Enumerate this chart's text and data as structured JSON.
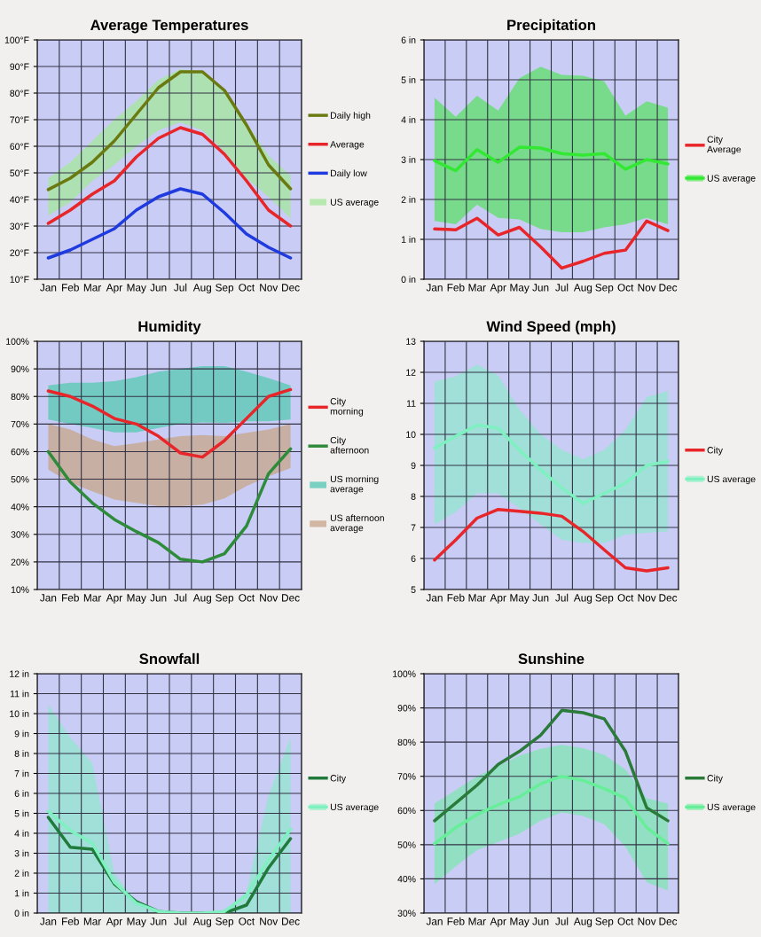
{
  "chart_data": [
    {
      "type": "line",
      "title": "Average Temperatures",
      "categories": [
        "Jan",
        "Feb",
        "Mar",
        "Apr",
        "May",
        "Jun",
        "Jul",
        "Aug",
        "Sep",
        "Oct",
        "Nov",
        "Dec"
      ],
      "ylim": [
        10,
        100
      ],
      "yticks": [
        {
          "value": 10,
          "label": "10°F"
        },
        {
          "value": 20,
          "label": "20°F"
        },
        {
          "value": 30,
          "label": "30°F"
        },
        {
          "value": 40,
          "label": "40°F"
        },
        {
          "value": 50,
          "label": "50°F"
        },
        {
          "value": 60,
          "label": "60°F"
        },
        {
          "value": 70,
          "label": "70°F"
        },
        {
          "value": 80,
          "label": "80°F"
        },
        {
          "value": 90,
          "label": "90°F"
        },
        {
          "value": 100,
          "label": "100°F"
        }
      ],
      "grid": true,
      "legend": "right",
      "series": [
        {
          "name": "Daily high",
          "color": "#6b7a10",
          "values": [
            43.7,
            48,
            54,
            62,
            72,
            82,
            88,
            88,
            81,
            68,
            53,
            44
          ]
        },
        {
          "name": "Average",
          "color": "#e8262a",
          "values": [
            31,
            36,
            42,
            47,
            56,
            63,
            67,
            64.5,
            57,
            47,
            36,
            30
          ]
        },
        {
          "name": "Daily low",
          "color": "#1f3be0",
          "values": [
            18,
            21,
            25,
            29,
            36,
            41,
            44,
            42,
            35,
            27,
            22,
            18
          ]
        },
        {
          "name": "US average",
          "color": "#a8e6a0",
          "values": [
            null,
            null,
            null,
            null,
            null,
            null,
            null,
            null,
            null,
            null,
            null,
            null
          ],
          "lower": [
            34,
            39,
            47,
            53,
            60,
            66,
            69,
            66,
            58,
            48,
            41,
            33
          ],
          "upper": [
            48,
            54,
            62,
            70,
            77,
            85,
            89,
            88,
            81,
            69,
            56.5,
            49
          ]
        }
      ]
    },
    {
      "type": "line",
      "title": "Precipitation",
      "categories": [
        "Jan",
        "Feb",
        "Mar",
        "Apr",
        "May",
        "Jun",
        "Jul",
        "Aug",
        "Sep",
        "Oct",
        "Nov",
        "Dec"
      ],
      "ylim": [
        0,
        6
      ],
      "yticks": [
        {
          "value": 0,
          "label": "0 in"
        },
        {
          "value": 1,
          "label": "1 in"
        },
        {
          "value": 2,
          "label": "2 in"
        },
        {
          "value": 3,
          "label": "3 in"
        },
        {
          "value": 4,
          "label": "4 in"
        },
        {
          "value": 5,
          "label": "5 in"
        },
        {
          "value": 6,
          "label": "6 in"
        }
      ],
      "grid": true,
      "legend": "right",
      "series": [
        {
          "name": "City\nAverage",
          "color": "#e8262a",
          "values": [
            1.26,
            1.24,
            1.53,
            1.11,
            1.3,
            0.81,
            0.28,
            0.45,
            0.65,
            0.73,
            1.46,
            1.22
          ]
        },
        {
          "name": "US average",
          "color": "#33e833",
          "values": [
            2.97,
            2.72,
            3.25,
            2.93,
            3.31,
            3.29,
            3.15,
            3.11,
            3.15,
            2.76,
            3.0,
            2.89
          ],
          "lower": [
            1.46,
            1.38,
            1.87,
            1.54,
            1.5,
            1.26,
            1.18,
            1.18,
            1.3,
            1.38,
            1.54,
            1.38
          ],
          "upper": [
            4.55,
            4.07,
            4.6,
            4.23,
            5.04,
            5.33,
            5.12,
            5.1,
            4.96,
            4.1,
            4.46,
            4.3
          ]
        }
      ]
    },
    {
      "type": "line",
      "title": "Humidity",
      "categories": [
        "Jan",
        "Feb",
        "Mar",
        "Apr",
        "May",
        "Jun",
        "Jul",
        "Aug",
        "Sep",
        "Oct",
        "Nov",
        "Dec"
      ],
      "ylim": [
        10,
        100
      ],
      "yticks": [
        {
          "value": 10,
          "label": "10%"
        },
        {
          "value": 20,
          "label": "20%"
        },
        {
          "value": 30,
          "label": "30%"
        },
        {
          "value": 40,
          "label": "40%"
        },
        {
          "value": 50,
          "label": "50%"
        },
        {
          "value": 60,
          "label": "60%"
        },
        {
          "value": 70,
          "label": "70%"
        },
        {
          "value": 80,
          "label": "80%"
        },
        {
          "value": 90,
          "label": "90%"
        },
        {
          "value": 100,
          "label": "100%"
        }
      ],
      "grid": true,
      "legend": "right",
      "series": [
        {
          "name": "City\nmorning",
          "color": "#e8262a",
          "values": [
            82,
            80,
            76.5,
            72,
            70,
            65.6,
            59.5,
            58,
            64,
            72,
            80,
            82.5
          ]
        },
        {
          "name": "City\nafternoon",
          "color": "#2e8b3a",
          "values": [
            60,
            49,
            41.4,
            35.4,
            31,
            27,
            21,
            20,
            23,
            33,
            52,
            61
          ]
        },
        {
          "name": "US morning\naverage",
          "color": "#5cc9b5",
          "values": [
            null,
            null,
            null,
            null,
            null,
            null,
            null,
            null,
            null,
            null,
            null,
            null
          ],
          "lower": [
            71.6,
            70,
            68.6,
            67,
            67,
            68.6,
            70,
            70.6,
            70.4,
            71,
            71,
            71.6
          ],
          "upper": [
            84,
            85,
            85,
            85.5,
            87,
            89,
            90,
            91,
            91,
            89,
            86.7,
            84
          ]
        },
        {
          "name": "US afternoon\naverage",
          "color": "#c8a890",
          "values": [
            null,
            null,
            null,
            null,
            null,
            null,
            null,
            null,
            null,
            null,
            null,
            null
          ],
          "lower": [
            53.5,
            48.7,
            45.6,
            42.6,
            41.4,
            40.2,
            40.2,
            40.8,
            43,
            47.5,
            51,
            54
          ],
          "upper": [
            70,
            68,
            64.4,
            62,
            63,
            64.4,
            65.6,
            66,
            65.6,
            66.8,
            68,
            70
          ]
        }
      ]
    },
    {
      "type": "line",
      "title": "Wind Speed (mph)",
      "categories": [
        "Jan",
        "Feb",
        "Mar",
        "Apr",
        "May",
        "Jun",
        "Jul",
        "Aug",
        "Sep",
        "Oct",
        "Nov",
        "Dec"
      ],
      "ylim": [
        5,
        13
      ],
      "yticks": [
        5,
        6,
        7,
        8,
        9,
        10,
        11,
        12,
        13
      ],
      "grid": true,
      "legend": "right",
      "series": [
        {
          "name": "City",
          "color": "#e8262a",
          "values": [
            5.95,
            6.6,
            7.3,
            7.58,
            7.52,
            7.46,
            7.36,
            6.87,
            6.28,
            5.7,
            5.6,
            5.7
          ]
        },
        {
          "name": "US average",
          "color": "#7ff0c0",
          "values": [
            9.56,
            9.94,
            10.3,
            10.2,
            9.5,
            8.86,
            8.27,
            7.78,
            8.1,
            8.43,
            9.0,
            9.13
          ],
          "lower": [
            7.1,
            7.5,
            8.1,
            8.1,
            7.63,
            7.1,
            6.6,
            6.5,
            6.5,
            6.77,
            6.83,
            6.87
          ],
          "upper": [
            11.7,
            11.87,
            12.25,
            11.9,
            10.8,
            10.0,
            9.5,
            9.2,
            9.5,
            10.15,
            11.2,
            11.4
          ]
        }
      ]
    },
    {
      "type": "line",
      "title": "Snowfall",
      "categories": [
        "Jan",
        "Feb",
        "Mar",
        "Apr",
        "May",
        "Jun",
        "Jul",
        "Aug",
        "Sep",
        "Oct",
        "Nov",
        "Dec"
      ],
      "ylim": [
        0,
        12
      ],
      "yticks": [
        {
          "value": 0,
          "label": "0 in"
        },
        {
          "value": 1,
          "label": "1 in"
        },
        {
          "value": 2,
          "label": "2 in"
        },
        {
          "value": 3,
          "label": "3 in"
        },
        {
          "value": 4,
          "label": "4 in"
        },
        {
          "value": 5,
          "label": "5 in"
        },
        {
          "value": 6,
          "label": "6 in"
        },
        {
          "value": 7,
          "label": "7 in"
        },
        {
          "value": 8,
          "label": "8 in"
        },
        {
          "value": 9,
          "label": "9 in"
        },
        {
          "value": 10,
          "label": "10 in"
        },
        {
          "value": 11,
          "label": "11 in"
        },
        {
          "value": 12,
          "label": "12 in"
        }
      ],
      "grid": true,
      "legend": "right",
      "series": [
        {
          "name": "City",
          "color": "#1f7a3c",
          "values": [
            4.8,
            3.3,
            3.2,
            1.46,
            0.57,
            0.08,
            0,
            0,
            0,
            0.4,
            2.27,
            3.73
          ]
        },
        {
          "name": "US average",
          "color": "#7ff0c0",
          "values": [
            5.1,
            4.13,
            3.5,
            1.54,
            0.49,
            0.08,
            0,
            0,
            0.08,
            0.9,
            2.67,
            4.2
          ],
          "lower": [
            0,
            0,
            0,
            0,
            0,
            0,
            0,
            0,
            0,
            0,
            0,
            0
          ],
          "upper": [
            10.45,
            8.8,
            7.5,
            2.0,
            0.57,
            0.08,
            0,
            0,
            0.08,
            1.05,
            5.9,
            8.8
          ]
        }
      ]
    },
    {
      "type": "line",
      "title": "Sunshine",
      "categories": [
        "Jan",
        "Feb",
        "Mar",
        "Apr",
        "May",
        "Jun",
        "Jul",
        "Aug",
        "Sep",
        "Oct",
        "Nov",
        "Dec"
      ],
      "ylim": [
        30,
        100
      ],
      "yticks": [
        {
          "value": 30,
          "label": "30%"
        },
        {
          "value": 40,
          "label": "40%"
        },
        {
          "value": 50,
          "label": "50%"
        },
        {
          "value": 60,
          "label": "60%"
        },
        {
          "value": 70,
          "label": "70%"
        },
        {
          "value": 80,
          "label": "80%"
        },
        {
          "value": 90,
          "label": "90%"
        },
        {
          "value": 100,
          "label": "100%"
        }
      ],
      "grid": true,
      "legend": "right",
      "series": [
        {
          "name": "City",
          "color": "#2a7a3a",
          "values": [
            57,
            62.2,
            67.4,
            73.5,
            77.3,
            82,
            89.3,
            88.6,
            86.8,
            77.3,
            60.8,
            57
          ]
        },
        {
          "name": "US average",
          "color": "#66ee99",
          "values": [
            50.3,
            55,
            58.8,
            61.7,
            64,
            67.8,
            70,
            68.8,
            66.4,
            63.6,
            55,
            50.3
          ],
          "lower": [
            38.5,
            43.7,
            48.4,
            50.8,
            53.2,
            57,
            59.4,
            58.4,
            56,
            49.4,
            39,
            36.6
          ],
          "upper": [
            62,
            66,
            70,
            73,
            76,
            78,
            79.2,
            78.2,
            76.3,
            72,
            63.6,
            62
          ]
        }
      ]
    }
  ]
}
